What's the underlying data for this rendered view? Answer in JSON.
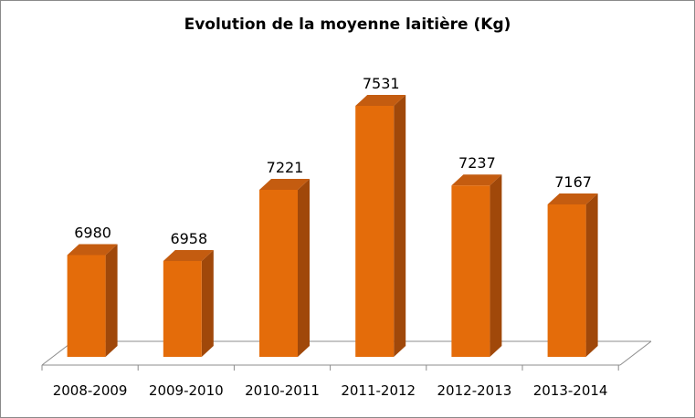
{
  "chart_data": {
    "type": "bar",
    "title": "Evolution de la moyenne laitière (Kg)",
    "categories": [
      "2008-2009",
      "2009-2010",
      "2010-2011",
      "2011-2012",
      "2012-2013",
      "2013-2014"
    ],
    "values": [
      6980,
      6958,
      7221,
      7531,
      7237,
      7167
    ],
    "data_labels": [
      "6980",
      "6958",
      "7221",
      "7531",
      "7237",
      "7167"
    ],
    "style": "3d-column",
    "ylim": [
      6700,
      7600
    ],
    "y_axis_visible": false,
    "grid": false,
    "colors": {
      "bar_front": "#E46C0A",
      "bar_side": "#A0480A",
      "bar_top": "#C45C10",
      "floor_line": "#8c8c8c"
    }
  }
}
